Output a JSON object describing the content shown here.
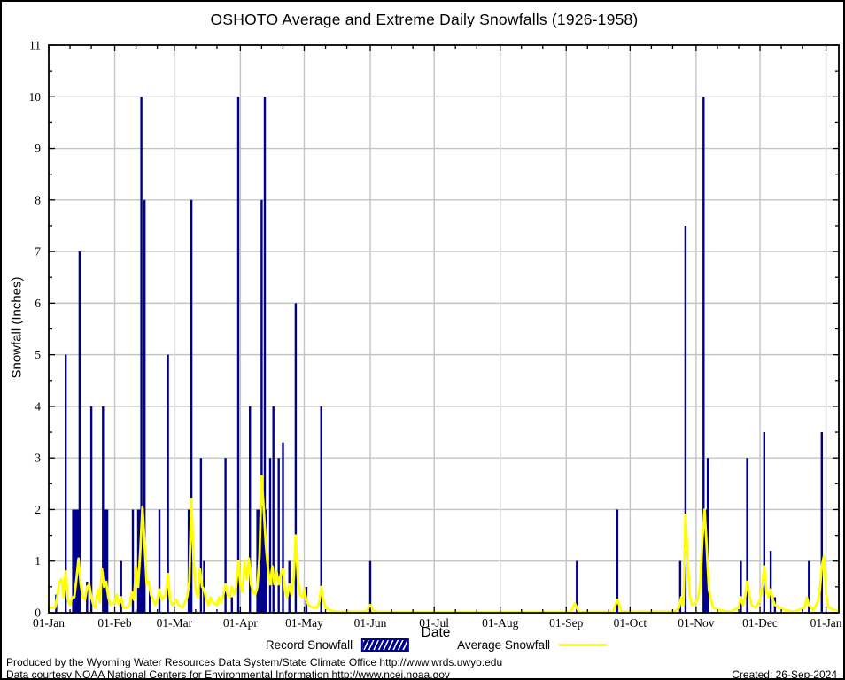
{
  "title": "OSHOTO Average and Extreme Daily Snowfalls (1926-1958)",
  "axes": {
    "x": {
      "label": "Date",
      "tick_labels": [
        "01-Jan",
        "01-Feb",
        "01-Mar",
        "01-Apr",
        "01-May",
        "01-Jun",
        "01-Jul",
        "01-Aug",
        "01-Sep",
        "01-Oct",
        "01-Nov",
        "01-Dec",
        "01-Jan"
      ],
      "tick_days": [
        0,
        31,
        59,
        90,
        120,
        151,
        181,
        212,
        243,
        273,
        304,
        334,
        365
      ],
      "minor_tick_offsets": [
        10,
        20
      ],
      "domain_days": 371
    },
    "y": {
      "label": "Snowfall (Inches)",
      "tick_values": [
        0,
        1,
        2,
        3,
        4,
        5,
        6,
        7,
        8,
        9,
        10,
        11
      ],
      "minor_step": 0.5,
      "max": 11
    }
  },
  "legend": {
    "record_label": "Record Snowfall",
    "average_label": "Average Snowfall"
  },
  "colors": {
    "record": "#00008b",
    "average": "#ffff00",
    "grid": "#c4c4c4",
    "frame": "#000000",
    "background": "#ffffff"
  },
  "footer": {
    "line1": "Produced by the Wyoming Water Resources Data System/State Climate Office http://www.wrds.uwyo.edu",
    "line2": "Data courtesy NOAA National Centers for Environmental Information http://www.ncei.noaa.gov",
    "created": "Created: 26-Sep-2024"
  },
  "chart_data": {
    "type": "bar",
    "title": "OSHOTO Average and Extreme Daily Snowfalls (1926-1958)",
    "xlabel": "Date",
    "ylabel": "Snowfall (Inches)",
    "ylim": [
      0,
      11
    ],
    "xlim_days": [
      0,
      371
    ],
    "x_unit": "day_of_year_from_01_Jan",
    "grid": true,
    "legend_position": "bottom-center",
    "series": [
      {
        "name": "Record Snowfall",
        "type": "bar",
        "color": "#00008b",
        "point_format": "[day, inches, width_days(optional)]",
        "points": [
          [
            3.5,
            0.35
          ],
          [
            8,
            5
          ],
          [
            13,
            2,
            4
          ],
          [
            14.5,
            7
          ],
          [
            18,
            0.6
          ],
          [
            20,
            4
          ],
          [
            25.5,
            4
          ],
          [
            27,
            2,
            2
          ],
          [
            34,
            1
          ],
          [
            39.5,
            2
          ],
          [
            43,
            2,
            3
          ],
          [
            43.5,
            10
          ],
          [
            45,
            8
          ],
          [
            47.5,
            0.5
          ],
          [
            52,
            2
          ],
          [
            56,
            5
          ],
          [
            66,
            2,
            1.5
          ],
          [
            67,
            8
          ],
          [
            71.5,
            3
          ],
          [
            73,
            1
          ],
          [
            83,
            3
          ],
          [
            86,
            0.3
          ],
          [
            89,
            10
          ],
          [
            94.5,
            4
          ],
          [
            100,
            2,
            5
          ],
          [
            100,
            8
          ],
          [
            101.5,
            10
          ],
          [
            104,
            3
          ],
          [
            105.5,
            4
          ],
          [
            108,
            3
          ],
          [
            110,
            3.3
          ],
          [
            113,
            1
          ],
          [
            116,
            6
          ],
          [
            121,
            0.5
          ],
          [
            128,
            4
          ],
          [
            151,
            1
          ],
          [
            248,
            1
          ],
          [
            267,
            2
          ],
          [
            296.5,
            1
          ],
          [
            299,
            7.5
          ],
          [
            307.5,
            10
          ],
          [
            308.5,
            2,
            2
          ],
          [
            309.5,
            3
          ],
          [
            325,
            1
          ],
          [
            328,
            3
          ],
          [
            336,
            3.5
          ],
          [
            339,
            1.2
          ],
          [
            341,
            0.3
          ],
          [
            357,
            1
          ],
          [
            363,
            3.5
          ]
        ]
      },
      {
        "name": "Average Snowfall",
        "type": "line",
        "color": "#ffff00",
        "point_format": "[day, inches]",
        "points": [
          [
            0,
            0.1
          ],
          [
            3,
            0.1
          ],
          [
            4,
            0.3
          ],
          [
            5,
            0.6
          ],
          [
            6,
            0.65
          ],
          [
            7,
            0.3
          ],
          [
            8,
            0.8
          ],
          [
            9,
            0.25
          ],
          [
            10,
            0.15
          ],
          [
            11,
            0.3
          ],
          [
            12,
            0.3
          ],
          [
            13,
            0.65
          ],
          [
            14,
            1.05
          ],
          [
            15,
            0.55
          ],
          [
            16,
            0.3
          ],
          [
            17,
            0.25
          ],
          [
            18,
            0.5
          ],
          [
            19,
            0.55
          ],
          [
            20,
            0.3
          ],
          [
            21,
            0.15
          ],
          [
            22,
            0.1
          ],
          [
            23,
            0.45
          ],
          [
            24,
            0.2
          ],
          [
            25,
            0.85
          ],
          [
            26,
            0.5
          ],
          [
            27,
            0.6
          ],
          [
            28,
            0.3
          ],
          [
            29,
            0.15
          ],
          [
            31,
            0.2
          ],
          [
            32,
            0.35
          ],
          [
            33,
            0.15
          ],
          [
            34,
            0.3
          ],
          [
            35,
            0.1
          ],
          [
            37,
            0.1
          ],
          [
            38,
            0.15
          ],
          [
            39,
            0.4
          ],
          [
            40,
            0.25
          ],
          [
            41,
            0.9
          ],
          [
            42,
            0.5
          ],
          [
            43,
            1.2
          ],
          [
            44,
            2.05
          ],
          [
            45,
            1.35
          ],
          [
            46,
            0.55
          ],
          [
            47,
            0.6
          ],
          [
            48,
            0.35
          ],
          [
            50,
            0.15
          ],
          [
            51,
            0.25
          ],
          [
            52,
            0.45
          ],
          [
            53,
            0.25
          ],
          [
            55,
            0.35
          ],
          [
            56,
            0.75
          ],
          [
            57,
            0.25
          ],
          [
            58,
            0.15
          ],
          [
            60,
            0.25
          ],
          [
            61,
            0.15
          ],
          [
            63,
            0.1
          ],
          [
            65,
            0.3
          ],
          [
            66,
            0.6
          ],
          [
            67,
            2.2
          ],
          [
            68,
            1.05
          ],
          [
            69,
            0.45
          ],
          [
            70,
            0.3
          ],
          [
            71,
            0.85
          ],
          [
            72,
            0.5
          ],
          [
            73,
            0.45
          ],
          [
            74,
            0.25
          ],
          [
            75,
            0.15
          ],
          [
            76,
            0.3
          ],
          [
            77,
            0.2
          ],
          [
            79,
            0.15
          ],
          [
            80,
            0.3
          ],
          [
            81,
            0.2
          ],
          [
            82,
            0.35
          ],
          [
            83,
            0.55
          ],
          [
            84,
            0.35
          ],
          [
            85,
            0.3
          ],
          [
            86,
            0.5
          ],
          [
            87,
            0.35
          ],
          [
            88,
            0.5
          ],
          [
            89,
            1.0
          ],
          [
            90,
            0.55
          ],
          [
            91,
            0.4
          ],
          [
            92,
            1.0
          ],
          [
            93,
            0.65
          ],
          [
            94,
            1.05
          ],
          [
            95,
            0.55
          ],
          [
            96,
            0.4
          ],
          [
            97,
            0.35
          ],
          [
            98,
            0.5
          ],
          [
            99,
            1.1
          ],
          [
            100,
            2.65
          ],
          [
            101,
            2.0
          ],
          [
            102,
            1.3
          ],
          [
            103,
            0.85
          ],
          [
            104,
            0.55
          ],
          [
            105,
            0.9
          ],
          [
            106,
            0.55
          ],
          [
            107,
            0.8
          ],
          [
            108,
            0.55
          ],
          [
            109,
            0.75
          ],
          [
            110,
            0.85
          ],
          [
            111,
            0.4
          ],
          [
            112,
            0.3
          ],
          [
            113,
            0.55
          ],
          [
            114,
            0.35
          ],
          [
            115,
            0.65
          ],
          [
            116,
            1.5
          ],
          [
            117,
            0.65
          ],
          [
            118,
            0.35
          ],
          [
            119,
            0.3
          ],
          [
            120,
            0.45
          ],
          [
            121,
            0.25
          ],
          [
            122,
            0.15
          ],
          [
            124,
            0.1
          ],
          [
            126,
            0.1
          ],
          [
            127,
            0.2
          ],
          [
            128,
            0.5
          ],
          [
            129,
            0.25
          ],
          [
            130,
            0.1
          ],
          [
            132,
            0.05
          ],
          [
            135,
            0.02
          ],
          [
            149,
            0.02
          ],
          [
            150,
            0.08
          ],
          [
            151,
            0.15
          ],
          [
            152,
            0.05
          ],
          [
            154,
            0.02
          ],
          [
            160,
            0.01
          ],
          [
            245,
            0.01
          ],
          [
            247,
            0.18
          ],
          [
            249,
            0.01
          ],
          [
            265,
            0.02
          ],
          [
            267,
            0.25
          ],
          [
            269,
            0.02
          ],
          [
            294,
            0.02
          ],
          [
            296,
            0.1
          ],
          [
            297,
            0.3
          ],
          [
            298,
            0.15
          ],
          [
            299,
            1.9
          ],
          [
            300,
            1.05
          ],
          [
            301,
            0.35
          ],
          [
            302,
            0.15
          ],
          [
            304,
            0.2
          ],
          [
            305,
            0.3
          ],
          [
            306,
            0.6
          ],
          [
            307,
            1.45
          ],
          [
            308,
            2.0
          ],
          [
            309,
            1.25
          ],
          [
            310,
            0.45
          ],
          [
            311,
            0.25
          ],
          [
            312,
            0.1
          ],
          [
            315,
            0.05
          ],
          [
            320,
            0.02
          ],
          [
            324,
            0.1
          ],
          [
            325,
            0.3
          ],
          [
            326,
            0.15
          ],
          [
            327,
            0.3
          ],
          [
            328,
            0.6
          ],
          [
            329,
            0.35
          ],
          [
            330,
            0.15
          ],
          [
            332,
            0.1
          ],
          [
            334,
            0.25
          ],
          [
            335,
            0.5
          ],
          [
            336,
            0.9
          ],
          [
            337,
            0.4
          ],
          [
            338,
            0.3
          ],
          [
            339,
            0.45
          ],
          [
            340,
            0.25
          ],
          [
            341,
            0.15
          ],
          [
            343,
            0.1
          ],
          [
            346,
            0.05
          ],
          [
            350,
            0.02
          ],
          [
            355,
            0.1
          ],
          [
            356,
            0.3
          ],
          [
            357,
            0.15
          ],
          [
            359,
            0.05
          ],
          [
            361,
            0.2
          ],
          [
            362,
            0.4
          ],
          [
            363,
            0.9
          ],
          [
            364,
            1.1
          ],
          [
            365,
            0.35
          ],
          [
            366,
            0.12
          ],
          [
            368,
            0.06
          ],
          [
            371,
            0.05
          ]
        ]
      }
    ]
  }
}
